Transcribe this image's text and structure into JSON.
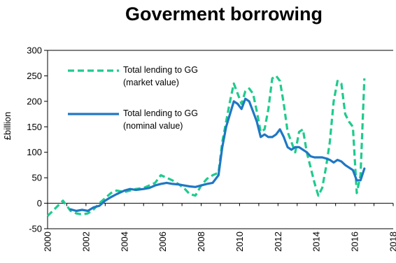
{
  "chart_data": {
    "type": "line",
    "title": "Goverment borrowing",
    "ylabel": "£billion",
    "xlabel": "",
    "xlim": [
      2000,
      2018
    ],
    "ylim": [
      -50,
      300
    ],
    "x_ticks": [
      "2000",
      "2002",
      "2004",
      "2006",
      "2008",
      "2010",
      "2012",
      "2014",
      "2016",
      "2018"
    ],
    "y_ticks": [
      "300",
      "250",
      "200",
      "150",
      "100",
      "50",
      "0",
      "-50"
    ],
    "grid": false,
    "legend_position": "top-left",
    "series": [
      {
        "name_line1": "Total lending to GG",
        "name_line2": "(market value)",
        "color": "#1ECB8C",
        "style": "dashed",
        "x": [
          2000.0,
          2000.4,
          2000.8,
          2001.2,
          2001.5,
          2001.8,
          2002.1,
          2002.4,
          2002.7,
          2003.0,
          2003.3,
          2003.6,
          2004.0,
          2004.3,
          2004.6,
          2005.0,
          2005.3,
          2005.6,
          2005.9,
          2006.2,
          2006.5,
          2006.8,
          2007.1,
          2007.4,
          2007.7,
          2008.0,
          2008.3,
          2008.6,
          2008.9,
          2009.1,
          2009.3,
          2009.5,
          2009.7,
          2009.9,
          2010.1,
          2010.3,
          2010.5,
          2010.7,
          2010.9,
          2011.1,
          2011.3,
          2011.5,
          2011.7,
          2011.9,
          2012.1,
          2012.3,
          2012.5,
          2012.7,
          2012.9,
          2013.1,
          2013.3,
          2013.5,
          2013.7,
          2013.9,
          2014.1,
          2014.3,
          2014.5,
          2014.7,
          2014.9,
          2015.1,
          2015.3,
          2015.5,
          2015.7,
          2015.9,
          2016.1,
          2016.3,
          2016.5
        ],
        "y": [
          -25,
          -10,
          5,
          -15,
          -20,
          -22,
          -20,
          -12,
          0,
          10,
          20,
          25,
          22,
          25,
          28,
          30,
          35,
          40,
          55,
          50,
          45,
          38,
          30,
          18,
          15,
          35,
          48,
          55,
          60,
          120,
          160,
          200,
          235,
          215,
          195,
          220,
          225,
          215,
          180,
          140,
          145,
          185,
          245,
          250,
          240,
          195,
          140,
          120,
          100,
          140,
          145,
          100,
          70,
          40,
          15,
          30,
          70,
          120,
          200,
          240,
          235,
          175,
          160,
          150,
          20,
          55,
          245
        ]
      },
      {
        "name_line1": "Total lending to GG",
        "name_line2": "(nominal value)",
        "color": "#1F77C4",
        "style": "solid",
        "x": [
          2001.2,
          2001.5,
          2001.8,
          2002.1,
          2002.4,
          2002.7,
          2003.0,
          2003.3,
          2003.6,
          2004.0,
          2004.3,
          2004.6,
          2005.0,
          2005.3,
          2005.6,
          2005.9,
          2006.2,
          2006.5,
          2006.8,
          2007.1,
          2007.4,
          2007.7,
          2008.0,
          2008.3,
          2008.6,
          2008.9,
          2009.1,
          2009.3,
          2009.5,
          2009.7,
          2009.9,
          2010.1,
          2010.3,
          2010.5,
          2010.7,
          2010.9,
          2011.1,
          2011.3,
          2011.5,
          2011.7,
          2011.9,
          2012.1,
          2012.3,
          2012.5,
          2012.7,
          2012.9,
          2013.1,
          2013.3,
          2013.5,
          2013.7,
          2013.9,
          2014.1,
          2014.3,
          2014.5,
          2014.7,
          2014.9,
          2015.1,
          2015.3,
          2015.5,
          2015.7,
          2015.9,
          2016.1,
          2016.3,
          2016.5
        ],
        "y": [
          -12,
          -15,
          -13,
          -15,
          -8,
          -5,
          5,
          12,
          18,
          25,
          28,
          26,
          28,
          30,
          35,
          38,
          40,
          38,
          37,
          35,
          33,
          32,
          35,
          38,
          40,
          55,
          110,
          150,
          175,
          200,
          195,
          185,
          205,
          200,
          180,
          160,
          130,
          135,
          130,
          130,
          135,
          145,
          130,
          110,
          105,
          110,
          110,
          105,
          100,
          92,
          90,
          90,
          90,
          88,
          85,
          80,
          85,
          82,
          75,
          70,
          65,
          45,
          45,
          68
        ]
      }
    ]
  }
}
